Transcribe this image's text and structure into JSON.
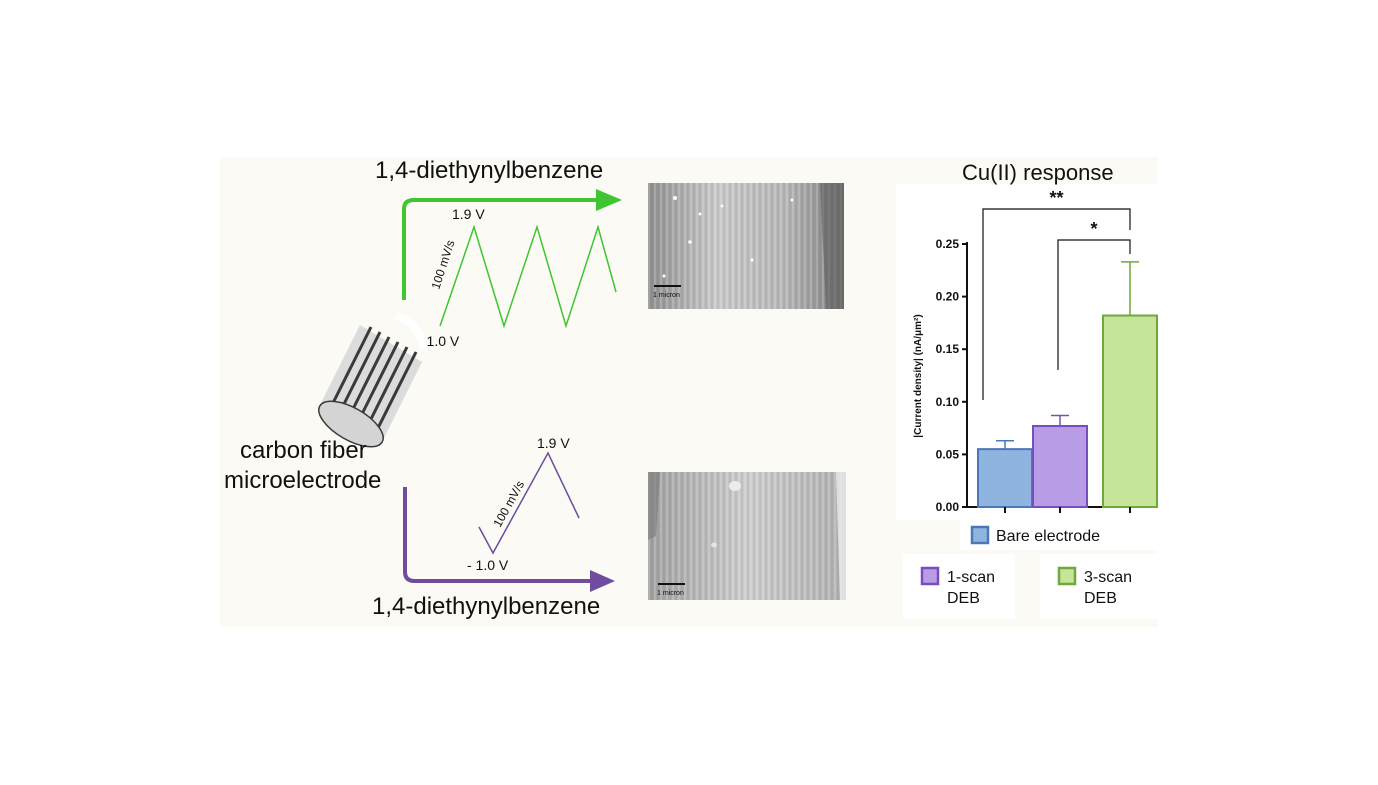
{
  "schematic": {
    "reagent_top": "1,4-diethynylbenzene",
    "reagent_bottom": "1,4-diethynylbenzene",
    "electrode_label_line1": "carbon fiber",
    "electrode_label_line2": "microelectrode",
    "top_wave": {
      "v_high": "1.9 V",
      "v_low": "- 1.0 V",
      "rate": "100 mV/s",
      "scans": 3
    },
    "bottom_wave": {
      "v_high": "1.9 V",
      "v_low": "- 1.0 V",
      "rate": "100 mV/s",
      "scans": 1
    },
    "sem_scale_top": "1 micron",
    "sem_scale_bottom": "1 micron"
  },
  "colors": {
    "green": "#3fc531",
    "purple": "#6f4c9e",
    "bar_blue": "#8fb4e0",
    "bar_blue_edge": "#4a78b8",
    "bar_purple": "#b99ce6",
    "bar_purple_edge": "#7a4dbf",
    "bar_green": "#c6e49a",
    "bar_green_edge": "#6ea93a"
  },
  "chart_data": {
    "type": "bar",
    "title": "Cu(II) response",
    "ylabel": "|Current density| (nA/μm²)",
    "ylim": [
      0,
      0.25
    ],
    "yticks": [
      "0.00",
      "0.05",
      "0.10",
      "0.15",
      "0.20",
      "0.25"
    ],
    "categories": [
      "Bare electrode",
      "1-scan DEB",
      "3-scan DEB"
    ],
    "values": [
      0.055,
      0.077,
      0.182
    ],
    "errors": [
      0.008,
      0.01,
      0.051
    ],
    "significance": [
      {
        "from": 0,
        "to": 2,
        "label": "**"
      },
      {
        "from": 1,
        "to": 2,
        "label": "*"
      }
    ],
    "legend": [
      {
        "line1": "Bare electrode",
        "line2": ""
      },
      {
        "line1": "1-scan",
        "line2": "DEB"
      },
      {
        "line1": "3-scan",
        "line2": "DEB"
      }
    ]
  }
}
